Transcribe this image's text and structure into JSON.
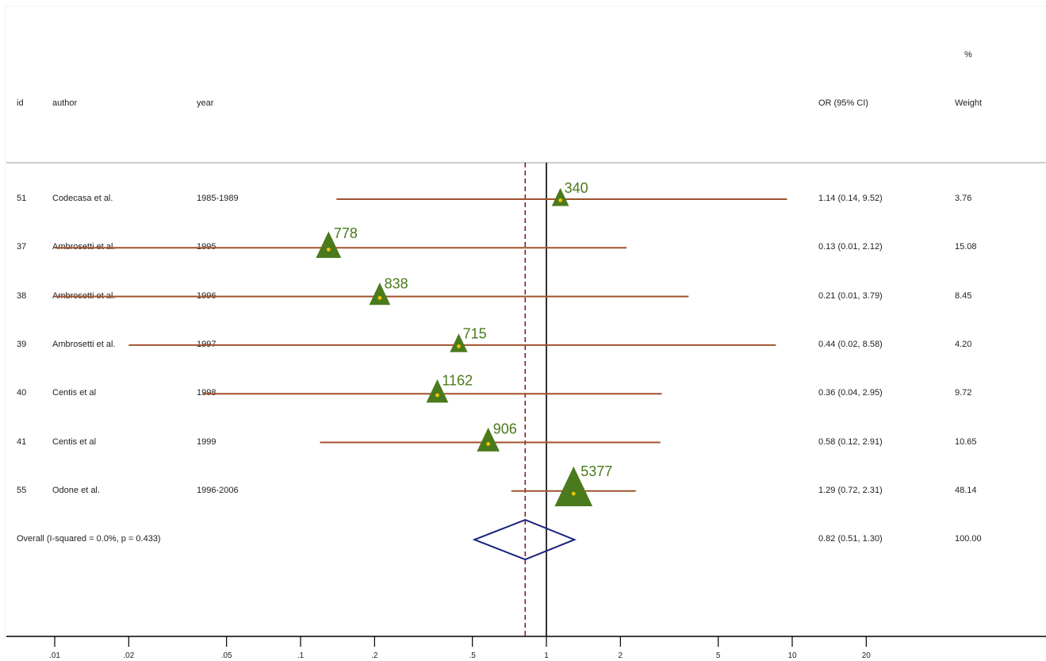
{
  "header": {
    "id_label": "id",
    "author_label": "author",
    "year_label": "year",
    "or_label": "OR (95% CI)",
    "weight_pct_label": "%",
    "weight_label": "Weight"
  },
  "chart_data": {
    "type": "forest",
    "x_scale": "log",
    "xlim": [
      0.01,
      20
    ],
    "x_ticks": [
      0.01,
      0.02,
      0.05,
      0.1,
      0.2,
      0.5,
      1,
      2,
      5,
      10,
      20
    ],
    "x_tick_labels": [
      ".01",
      ".02",
      ".05",
      ".1",
      ".2",
      ".5",
      "1",
      "2",
      "5",
      "10",
      "20"
    ],
    "null_line": 1,
    "overall_line": 0.82,
    "colors": {
      "ci_line": "#a0522d",
      "marker": "#4a7a1c",
      "marker_dot": "#f2c500",
      "diamond": "#1a237e",
      "overall_dash": "#8b1a1a",
      "label": "#4a7a1c"
    },
    "studies": [
      {
        "id": "51",
        "author": "Codecasa et al.",
        "year": "1985-1989",
        "or": 1.14,
        "lo": 0.14,
        "hi": 9.52,
        "or_text": "1.14 (0.14, 9.52)",
        "weight": 3.76,
        "weight_text": "3.76",
        "n_label": "340"
      },
      {
        "id": "37",
        "author": "Ambrosetti et al.",
        "year": "1995",
        "or": 0.13,
        "lo": 0.01,
        "hi": 2.12,
        "or_text": "0.13 (0.01, 2.12)",
        "weight": 15.08,
        "weight_text": "15.08",
        "n_label": "778"
      },
      {
        "id": "38",
        "author": "Ambrosetti et al.",
        "year": "1996",
        "or": 0.21,
        "lo": 0.01,
        "hi": 3.79,
        "or_text": "0.21 (0.01, 3.79)",
        "weight": 8.45,
        "weight_text": "8.45",
        "n_label": "838"
      },
      {
        "id": "39",
        "author": "Ambrosetti et al.",
        "year": "1997",
        "or": 0.44,
        "lo": 0.02,
        "hi": 8.58,
        "or_text": "0.44 (0.02, 8.58)",
        "weight": 4.2,
        "weight_text": "4.20",
        "n_label": "715"
      },
      {
        "id": "40",
        "author": "Centis et al",
        "year": "1998",
        "or": 0.36,
        "lo": 0.04,
        "hi": 2.95,
        "or_text": "0.36 (0.04, 2.95)",
        "weight": 9.72,
        "weight_text": "9.72",
        "n_label": "1162"
      },
      {
        "id": "41",
        "author": "Centis et al",
        "year": "1999",
        "or": 0.58,
        "lo": 0.12,
        "hi": 2.91,
        "or_text": "0.58 (0.12, 2.91)",
        "weight": 10.65,
        "weight_text": "10.65",
        "n_label": "906"
      },
      {
        "id": "55",
        "author": "Odone et al.",
        "year": "1996-2006",
        "or": 1.29,
        "lo": 0.72,
        "hi": 2.31,
        "or_text": "1.29 (0.72, 2.31)",
        "weight": 48.14,
        "weight_text": "48.14",
        "n_label": "5377"
      }
    ],
    "overall": {
      "label": "Overall  (I-squared = 0.0%, p = 0.433)",
      "or": 0.82,
      "lo": 0.51,
      "hi": 1.3,
      "or_text": "0.82 (0.51, 1.30)",
      "weight_text": "100.00"
    }
  }
}
